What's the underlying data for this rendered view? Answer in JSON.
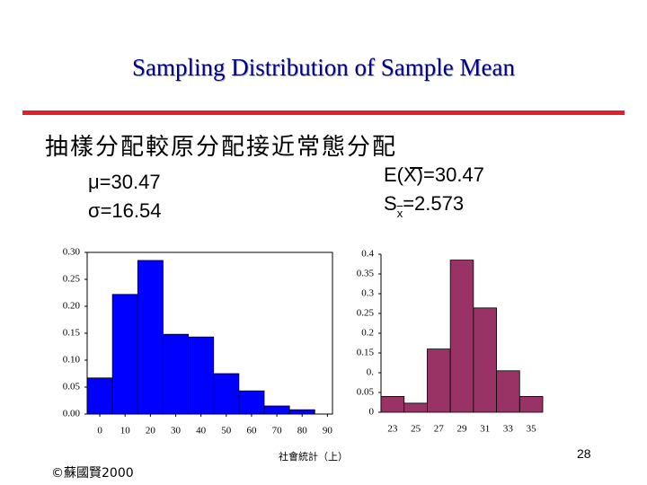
{
  "title": "Sampling Distribution of Sample Mean",
  "heading": "抽樣分配較原分配接近常態分配",
  "population_mean": "μ=30.47",
  "population_sd": "σ=16.54",
  "expected_mean": "E(X)=30.47",
  "standard_error": {
    "prefix": "S",
    "subscript": "x",
    "suffix": "=2.573"
  },
  "footer": "社會統計（上）",
  "page_number": "28",
  "copyright": "©蘇國賢2000",
  "chart_data": [
    {
      "type": "histogram",
      "color": "#0000ff",
      "frame": true,
      "bins": [
        -5,
        5,
        15,
        25,
        35,
        45,
        55,
        65,
        75,
        85
      ],
      "values": [
        0.067,
        0.222,
        0.285,
        0.148,
        0.143,
        0.075,
        0.043,
        0.015,
        0.008
      ],
      "xlim": [
        -5,
        92
      ],
      "xticks": [
        0,
        10,
        20,
        30,
        40,
        50,
        60,
        70,
        80,
        90
      ],
      "ylim": [
        0,
        0.3
      ],
      "yticks": [
        {
          "value": 0,
          "label": "0.00"
        },
        {
          "value": 0.05,
          "label": "0.05"
        },
        {
          "value": 0.1,
          "label": "0.10"
        },
        {
          "value": 0.15,
          "label": "0.15"
        },
        {
          "value": 0.2,
          "label": "0.20"
        },
        {
          "value": 0.25,
          "label": "0.25"
        },
        {
          "value": 0.3,
          "label": "0.30"
        }
      ]
    },
    {
      "type": "histogram",
      "color": "#993366",
      "frame": false,
      "bins": [
        22,
        24,
        26,
        28,
        30,
        32,
        34,
        36
      ],
      "values": [
        0.04,
        0.023,
        0.16,
        0.385,
        0.264,
        0.105,
        0.04
      ],
      "xlim": [
        22,
        36
      ],
      "xticks": [
        23,
        25,
        27,
        29,
        31,
        33,
        35
      ],
      "ylim": [
        0,
        0.4
      ],
      "yticks": [
        0,
        0.05,
        {
          "value": 0.1,
          "label": "0."
        },
        0.15,
        0.2,
        0.25,
        0.3,
        0.35,
        0.4
      ]
    }
  ]
}
